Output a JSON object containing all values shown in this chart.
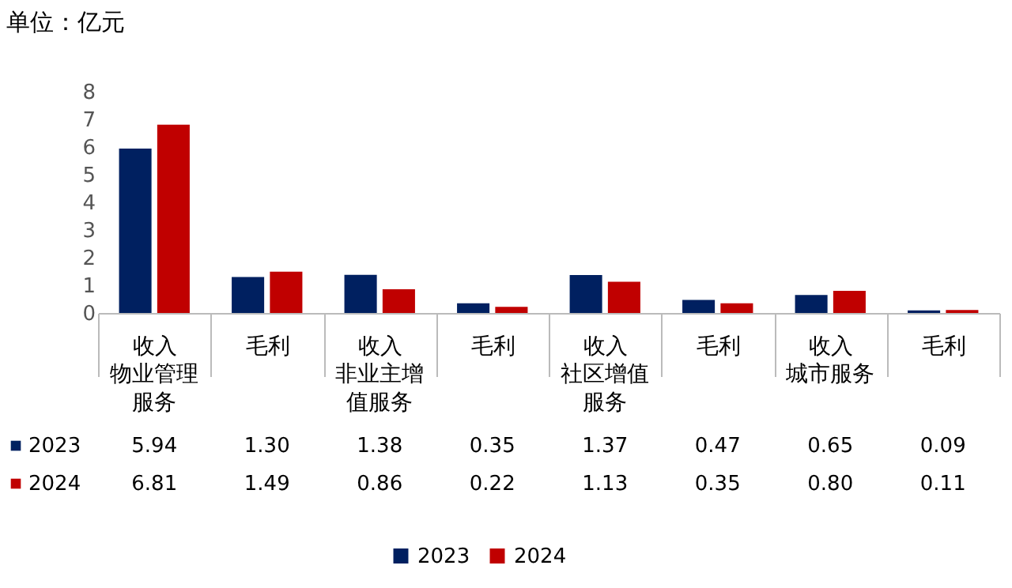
{
  "chart_data": {
    "type": "bar",
    "title": "单位：亿元",
    "categories": [
      "收入",
      "毛利",
      "收入",
      "毛利",
      "收入",
      "毛利",
      "收入",
      "毛利"
    ],
    "annotations": [
      "物业管理服务",
      "非业主增值服务",
      "社区增值服务",
      "城市服务"
    ],
    "series": [
      {
        "name": "2023",
        "color": "#002060",
        "values": [
          5.94,
          1.3,
          1.38,
          0.35,
          1.37,
          0.47,
          0.65,
          0.09
        ],
        "value_labels": [
          "5.94",
          "1.30",
          "1.38",
          "0.35",
          "1.37",
          "0.47",
          "0.65",
          "0.09"
        ]
      },
      {
        "name": "2024",
        "color": "#c00000",
        "values": [
          6.81,
          1.49,
          0.86,
          0.22,
          1.13,
          0.35,
          0.8,
          0.11
        ],
        "value_labels": [
          "6.81",
          "1.49",
          "0.86",
          "0.22",
          "1.13",
          "0.35",
          "0.80",
          "0.11"
        ]
      }
    ],
    "ylim": [
      0,
      8
    ],
    "yticks": [
      0,
      1,
      2,
      3,
      4,
      5,
      6,
      7,
      8
    ],
    "grid": false,
    "legend": "bottom"
  }
}
